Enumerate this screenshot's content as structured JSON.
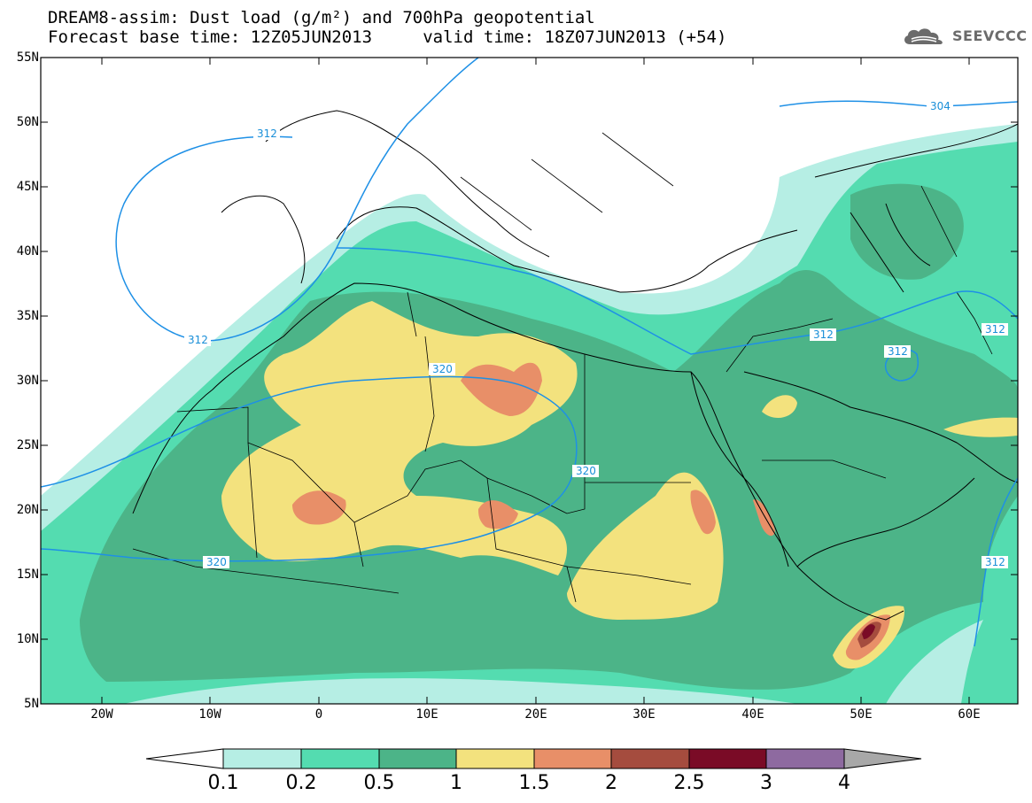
{
  "title": {
    "line1": "DREAM8-assim: Dust load (g/m²) and 700hPa geopotential",
    "line2": "Forecast base time: 12Z05JUN2013     valid time: 18Z07JUN2013 (+54)"
  },
  "logo": {
    "text": "SEEVCCC",
    "icon": "cloud-logo-icon"
  },
  "map": {
    "lat_range": [
      5,
      55
    ],
    "lon_range": [
      -25,
      65
    ],
    "lat_ticks": [
      "55N",
      "50N",
      "45N",
      "40N",
      "35N",
      "30N",
      "25N",
      "20N",
      "15N",
      "10N",
      "5N"
    ],
    "lon_ticks": [
      "20W",
      "10W",
      "0",
      "10E",
      "20E",
      "30E",
      "40E",
      "50E",
      "60E"
    ],
    "geopotential_labels": [
      "312",
      "304",
      "312",
      "312",
      "312",
      "312",
      "320",
      "320",
      "320",
      "312"
    ]
  },
  "colorbar": {
    "labels": [
      "0.1",
      "0.2",
      "0.5",
      "1",
      "1.5",
      "2",
      "2.5",
      "3",
      "4"
    ],
    "colors": [
      "#ffffff",
      "#b6eee4",
      "#54dcb0",
      "#4cb488",
      "#f3e27e",
      "#e88f68",
      "#a54c3e",
      "#7a0b26",
      "#8e6aa0",
      "#a8a8a8"
    ]
  }
}
